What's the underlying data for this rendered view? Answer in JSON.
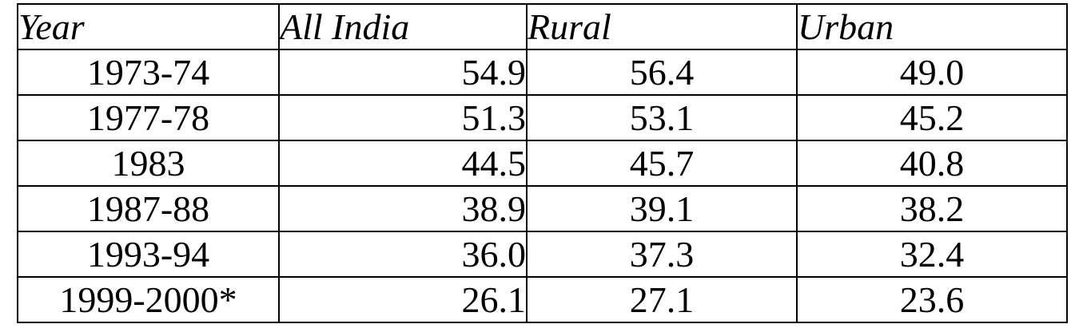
{
  "table": {
    "headers": [
      "Year",
      "All India",
      "Rural",
      "Urban"
    ],
    "rows": [
      [
        "1973-74",
        "54.9",
        "56.4",
        "49.0"
      ],
      [
        "1977-78",
        "51.3",
        "53.1",
        "45.2"
      ],
      [
        "1983",
        "44.5",
        "45.7",
        "40.8"
      ],
      [
        "1987-88",
        "38.9",
        "39.1",
        "38.2"
      ],
      [
        "1993-94",
        "36.0",
        "37.3",
        "32.4"
      ],
      [
        "1999-2000*",
        "26.1",
        "27.1",
        "23.6"
      ]
    ]
  }
}
